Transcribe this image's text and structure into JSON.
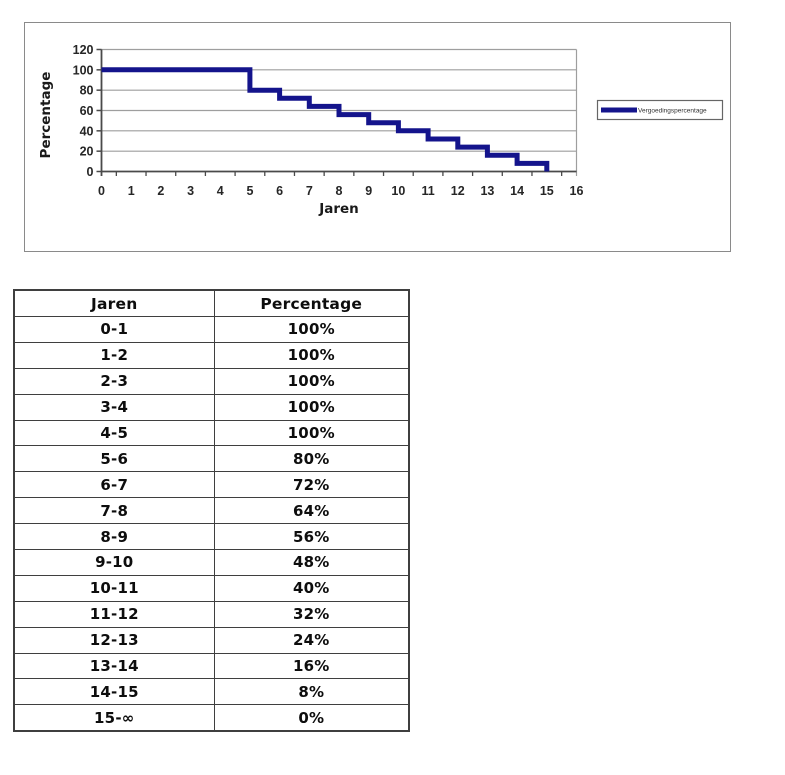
{
  "colors": {
    "series_line": "#14148C",
    "gridline": "#9e9e9e",
    "axis": "#4a4a4a",
    "tick_text": "#262626",
    "title_text": "#1a1a1a",
    "chart_frame_border": "#8a8a8a",
    "legend_border": "#666666",
    "table_border": "#3f3f3f",
    "background": "#ffffff"
  },
  "chart_data": {
    "type": "line",
    "step": true,
    "title": "",
    "xlabel": "Jaren",
    "ylabel": "Percentage",
    "xlim": [
      0,
      16
    ],
    "ylim": [
      0,
      120
    ],
    "x_ticks": [
      0,
      1,
      2,
      3,
      4,
      5,
      6,
      7,
      8,
      9,
      10,
      11,
      12,
      13,
      14,
      15,
      16
    ],
    "y_ticks": [
      0,
      20,
      40,
      60,
      80,
      100,
      120
    ],
    "grid": true,
    "legend": {
      "label": "Vergoedingspercentage",
      "position": "right"
    },
    "series": [
      {
        "name": "Vergoedingspercentage",
        "color": "#14148C",
        "points": [
          [
            0,
            100
          ],
          [
            5,
            100
          ],
          [
            5,
            80
          ],
          [
            6,
            80
          ],
          [
            6,
            72
          ],
          [
            7,
            72
          ],
          [
            7,
            64
          ],
          [
            8,
            64
          ],
          [
            8,
            56
          ],
          [
            9,
            56
          ],
          [
            9,
            48
          ],
          [
            10,
            48
          ],
          [
            10,
            40
          ],
          [
            11,
            40
          ],
          [
            11,
            32
          ],
          [
            12,
            32
          ],
          [
            12,
            24
          ],
          [
            13,
            24
          ],
          [
            13,
            16
          ],
          [
            14,
            16
          ],
          [
            14,
            8
          ],
          [
            15,
            8
          ],
          [
            15,
            0
          ]
        ]
      }
    ]
  },
  "table": {
    "headers": [
      "Jaren",
      "Percentage"
    ],
    "rows": [
      [
        "0-1",
        "100%"
      ],
      [
        "1-2",
        "100%"
      ],
      [
        "2-3",
        "100%"
      ],
      [
        "3-4",
        "100%"
      ],
      [
        "4-5",
        "100%"
      ],
      [
        "5-6",
        "80%"
      ],
      [
        "6-7",
        "72%"
      ],
      [
        "7-8",
        "64%"
      ],
      [
        "8-9",
        "56%"
      ],
      [
        "9-10",
        "48%"
      ],
      [
        "10-11",
        "40%"
      ],
      [
        "11-12",
        "32%"
      ],
      [
        "12-13",
        "24%"
      ],
      [
        "13-14",
        "16%"
      ],
      [
        "14-15",
        "8%"
      ],
      [
        "15-∞",
        "0%"
      ]
    ]
  }
}
